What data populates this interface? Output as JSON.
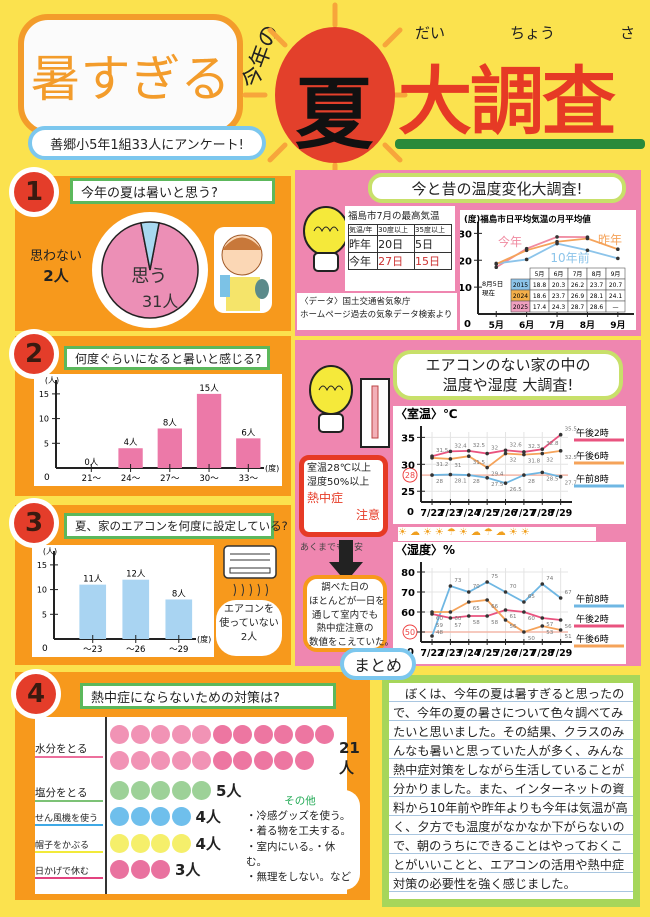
{
  "header": {
    "bubble": "暑すぎる",
    "prefix": "今年の",
    "sun_char": "夏",
    "title": "大調査",
    "furigana": [
      "だい",
      "ちょう",
      "さ"
    ],
    "subtitle": "善郷小5年1組33人にアンケート!"
  },
  "colors": {
    "background": "#fbe24e",
    "panel_orange": "#f7991c",
    "panel_pink": "#ef86b0",
    "title_red": "#e63a25",
    "bubble_orange": "#f39c2b",
    "bar_pink": "#ec79a8",
    "bar_blue": "#a9d4f2",
    "green": "#2a8a3a"
  },
  "q1": {
    "num": "1",
    "title": "今年の夏は暑いと思う?",
    "no_label": "思わない",
    "no_count": "2人",
    "yes_label": "思う",
    "yes_count": "31人"
  },
  "q2": {
    "num": "2",
    "title": "何度ぐらいになると暑いと感じる?"
  },
  "q3": {
    "num": "3",
    "title": "夏、家のエアコンを何度に設定している?",
    "note": [
      "エアコンを",
      "使っていない",
      "2人"
    ]
  },
  "q4": {
    "num": "4",
    "title": "熱中症にならないための対策は?",
    "items": [
      {
        "label": "水分をとる",
        "count": 21,
        "count_label": "21人",
        "color": "#ec6f9c"
      },
      {
        "label": "塩分をとる",
        "count": 5,
        "count_label": "5人",
        "color": "#7cc276"
      },
      {
        "label": "せん風機を使う",
        "count": 4,
        "count_label": "4人",
        "color": "#3fa9e6"
      },
      {
        "label": "帽子をかぶる",
        "count": 4,
        "count_label": "4人",
        "color": "#f2ea3a"
      },
      {
        "label": "日かげで休む",
        "count": 3,
        "count_label": "3人",
        "color": "#e2437f"
      }
    ],
    "other_title": "その他",
    "others": [
      "・冷感グッズを使う。",
      "・着る物を工夫する。",
      "・室内にいる。・休む。",
      "・無理をしない。など"
    ]
  },
  "compare": {
    "title": "今と昔の温度変化大調査!",
    "table_title": "福島市7月の最高気温",
    "header_corner": [
      "気温",
      "年"
    ],
    "cols": [
      "30度以上",
      "35度以上"
    ],
    "rows": [
      {
        "year": "昨年",
        "v": [
          "20日",
          "5日"
        ]
      },
      {
        "year": "今年",
        "v": [
          "27日",
          "15日"
        ]
      }
    ],
    "source": [
      "〈データ〉国土交通省気象庁",
      "ホームページ過去の気象データ検索より"
    ]
  },
  "aircon": {
    "title": [
      "エアコンのない家の中の",
      "温度や湿度 大調査!"
    ],
    "warning": [
      "室温28℃以上",
      "湿度50%以上"
    ],
    "warning_alert": [
      "熱中症",
      "注意"
    ],
    "caveat": "あくまでも目安",
    "finding": [
      "調べた日の",
      "ほとんどが一日を",
      "通して室内でも",
      "熱中症注意の",
      "数値をこえていた。"
    ]
  },
  "summary": {
    "label": "まとめ",
    "text": "ぼくは、今年の夏は暑すぎると思ったので、今年の夏の暑さについて色々調べてみたいと思いました。その結果、クラスのみんなも暑いと思っていた人が多く、みんな熱中症対策をしながら生活していることが分かりました。また、インターネットの資料から10年前や昨年よりも今年は気温が高く、夕方でも温度がなかなか下がらないので、朝のうちにできることはやっておくことがいいことと、エアコンの活用や熱中症対策の必要性を強く感じました。"
  },
  "chart_data": [
    {
      "type": "pie",
      "values": [
        31,
        2
      ],
      "labels": [
        "思う",
        "思わない"
      ]
    },
    {
      "type": "bar",
      "categories": [
        "21〜",
        "24〜",
        "27〜",
        "30〜",
        "33〜"
      ],
      "values": [
        0,
        4,
        8,
        15,
        6
      ],
      "data_labels": [
        "0人",
        "4人",
        "8人",
        "15人",
        "6人"
      ],
      "ylabel": "(人)",
      "xlabel": "(度)",
      "yticks": [
        5,
        10,
        15
      ],
      "ylim": [
        0,
        17
      ]
    },
    {
      "type": "bar",
      "categories": [
        "〜23",
        "〜26",
        "〜29"
      ],
      "values": [
        11,
        12,
        8
      ],
      "data_labels": [
        "11人",
        "12人",
        "8人"
      ],
      "ylabel": "(人)",
      "xlabel": "(度)",
      "yticks": [
        5,
        10,
        15
      ],
      "ylim": [
        0,
        17
      ]
    },
    {
      "type": "line",
      "title": "福島市日平均気温の月平均値",
      "ylabel": "(度)",
      "categories": [
        "5月",
        "6月",
        "7月",
        "8月",
        "9月"
      ],
      "yticks": [
        10,
        20,
        30
      ],
      "ylim": [
        0,
        32
      ],
      "series": [
        {
          "name": "今年",
          "color": "#f08aa0",
          "values": [
            17.4,
            24.3,
            28.7,
            28.6,
            null
          ]
        },
        {
          "name": "10年前",
          "color": "#8cc4ea",
          "values": [
            18.8,
            20.3,
            26.2,
            23.7,
            20.7
          ]
        },
        {
          "name": "昨年",
          "color": "#f5a35a",
          "values": [
            18.6,
            23.7,
            26.9,
            28.1,
            24.1
          ]
        }
      ],
      "table": {
        "note": [
          "8月5日",
          "現在"
        ],
        "header": [
          "5月",
          "6月",
          "7月",
          "8月",
          "9月"
        ],
        "rows": [
          {
            "year": "2015",
            "v": [
              "18.8",
              "20.3",
              "26.2",
              "23.7",
              "20.7"
            ]
          },
          {
            "year": "2024",
            "v": [
              "18.6",
              "23.7",
              "26.9",
              "28.1",
              "24.1"
            ]
          },
          {
            "year": "2025",
            "v": [
              "17.4",
              "24.3",
              "28.7",
              "28.6",
              "—"
            ]
          }
        ]
      }
    },
    {
      "type": "line",
      "title": "〈室温〉℃",
      "categories": [
        "7/22",
        "7/23",
        "7/24",
        "7/25",
        "7/26",
        "7/27",
        "7/28",
        "7/29"
      ],
      "yticks": [
        25,
        30,
        35
      ],
      "ylim": [
        23,
        36
      ],
      "threshold": 28,
      "series": [
        {
          "name": "午後2時",
          "color": "#e9537f",
          "values": [
            31.5,
            32.4,
            32.5,
            32.0,
            32.6,
            32.3,
            32.8,
            35.5
          ]
        },
        {
          "name": "午後6時",
          "color": "#f5a35a",
          "values": [
            31.2,
            31.0,
            31.5,
            29.4,
            32.0,
            31.8,
            32.0,
            32.5
          ]
        },
        {
          "name": "午前8時",
          "color": "#6fb7e3",
          "values": [
            28.0,
            28.1,
            28.0,
            27.5,
            26.5,
            28.0,
            28.5,
            27.7
          ]
        }
      ]
    },
    {
      "type": "line",
      "title": "〈湿度〉%",
      "categories": [
        "7/22",
        "7/23",
        "7/24",
        "7/25",
        "7/26",
        "7/27",
        "7/28",
        "7/29"
      ],
      "yticks": [
        50,
        60,
        70,
        80
      ],
      "ylim": [
        45,
        82
      ],
      "threshold": 50,
      "series": [
        {
          "name": "午前8時",
          "color": "#6fb7e3",
          "values": [
            48,
            73,
            70,
            75,
            70,
            65,
            74,
            67
          ]
        },
        {
          "name": "午後2時",
          "color": "#e9537f",
          "values": [
            59,
            57,
            58,
            58,
            61,
            60,
            57,
            56
          ]
        },
        {
          "name": "午後6時",
          "color": "#f5a35a",
          "values": [
            60,
            60,
            65,
            66,
            56,
            50,
            53,
            51
          ]
        }
      ]
    }
  ]
}
